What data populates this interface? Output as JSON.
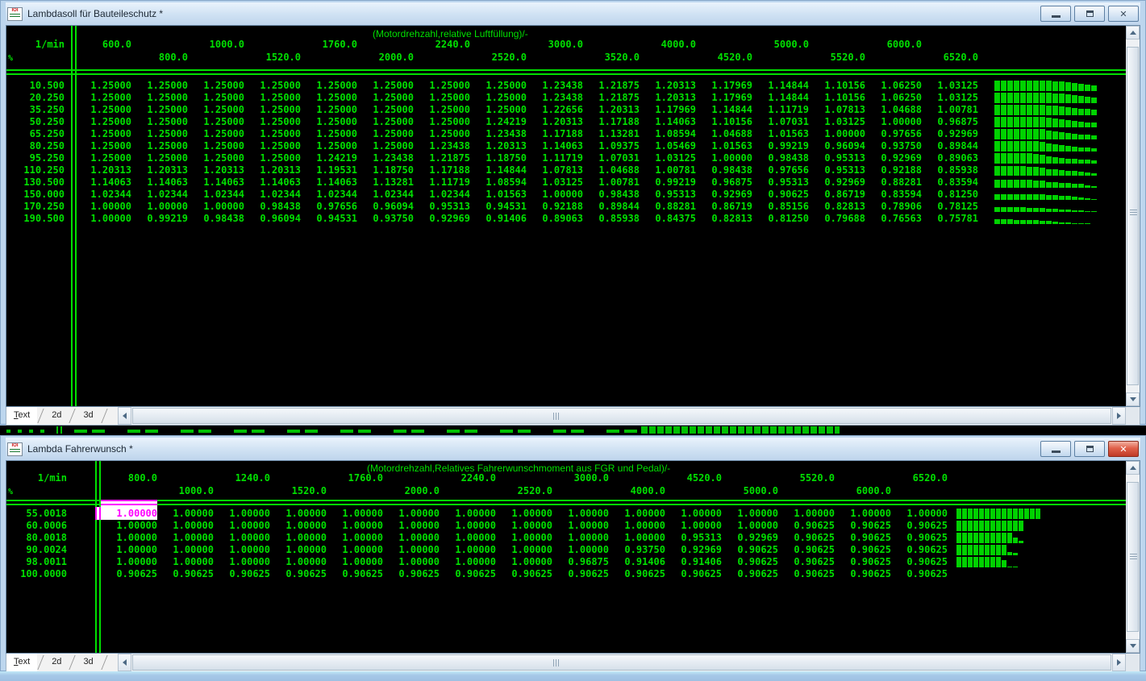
{
  "app": {
    "icon_text": "IOI"
  },
  "icons": {
    "close": "✕"
  },
  "colors": {
    "table_green": "#00e000",
    "bar_green": "#00d200",
    "selection_magenta": "#ff00ff",
    "selection_bg": "#ffffff",
    "table_bg": "#000000",
    "titlebar_blue": "#cfe1f3",
    "desktop_blue": "#9fc0e2"
  },
  "top_window": {
    "title": "Lambdasoll für Bauteileschutz *",
    "note": "(Motordrehzahl,relative Luftfüllung)/-",
    "x_unit": "1/min",
    "y_unit": "%",
    "tabs": [
      "Text",
      "2d",
      "3d"
    ],
    "active_tab": "Text",
    "columns": [
      "600.0",
      "800.0",
      "1000.0",
      "1520.0",
      "1760.0",
      "2000.0",
      "2240.0",
      "2520.0",
      "3000.0",
      "3520.0",
      "4000.0",
      "4520.0",
      "5000.0",
      "5520.0",
      "6000.0",
      "6520.0"
    ],
    "rows": [
      {
        "label": "10.500",
        "values": [
          "1.25000",
          "1.25000",
          "1.25000",
          "1.25000",
          "1.25000",
          "1.25000",
          "1.25000",
          "1.25000",
          "1.23438",
          "1.21875",
          "1.20313",
          "1.17969",
          "1.14844",
          "1.10156",
          "1.06250",
          "1.03125"
        ]
      },
      {
        "label": "20.250",
        "values": [
          "1.25000",
          "1.25000",
          "1.25000",
          "1.25000",
          "1.25000",
          "1.25000",
          "1.25000",
          "1.25000",
          "1.23438",
          "1.21875",
          "1.20313",
          "1.17969",
          "1.14844",
          "1.10156",
          "1.06250",
          "1.03125"
        ]
      },
      {
        "label": "35.250",
        "values": [
          "1.25000",
          "1.25000",
          "1.25000",
          "1.25000",
          "1.25000",
          "1.25000",
          "1.25000",
          "1.25000",
          "1.22656",
          "1.20313",
          "1.17969",
          "1.14844",
          "1.11719",
          "1.07813",
          "1.04688",
          "1.00781"
        ]
      },
      {
        "label": "50.250",
        "values": [
          "1.25000",
          "1.25000",
          "1.25000",
          "1.25000",
          "1.25000",
          "1.25000",
          "1.25000",
          "1.24219",
          "1.20313",
          "1.17188",
          "1.14063",
          "1.10156",
          "1.07031",
          "1.03125",
          "1.00000",
          "0.96875"
        ]
      },
      {
        "label": "65.250",
        "values": [
          "1.25000",
          "1.25000",
          "1.25000",
          "1.25000",
          "1.25000",
          "1.25000",
          "1.25000",
          "1.23438",
          "1.17188",
          "1.13281",
          "1.08594",
          "1.04688",
          "1.01563",
          "1.00000",
          "0.97656",
          "0.92969"
        ]
      },
      {
        "label": "80.250",
        "values": [
          "1.25000",
          "1.25000",
          "1.25000",
          "1.25000",
          "1.25000",
          "1.25000",
          "1.23438",
          "1.20313",
          "1.14063",
          "1.09375",
          "1.05469",
          "1.01563",
          "0.99219",
          "0.96094",
          "0.93750",
          "0.89844"
        ]
      },
      {
        "label": "95.250",
        "values": [
          "1.25000",
          "1.25000",
          "1.25000",
          "1.25000",
          "1.24219",
          "1.23438",
          "1.21875",
          "1.18750",
          "1.11719",
          "1.07031",
          "1.03125",
          "1.00000",
          "0.98438",
          "0.95313",
          "0.92969",
          "0.89063"
        ]
      },
      {
        "label": "110.250",
        "values": [
          "1.20313",
          "1.20313",
          "1.20313",
          "1.20313",
          "1.19531",
          "1.18750",
          "1.17188",
          "1.14844",
          "1.07813",
          "1.04688",
          "1.00781",
          "0.98438",
          "0.97656",
          "0.95313",
          "0.92188",
          "0.85938"
        ]
      },
      {
        "label": "130.500",
        "values": [
          "1.14063",
          "1.14063",
          "1.14063",
          "1.14063",
          "1.14063",
          "1.13281",
          "1.11719",
          "1.08594",
          "1.03125",
          "1.00781",
          "0.99219",
          "0.96875",
          "0.95313",
          "0.92969",
          "0.88281",
          "0.83594"
        ]
      },
      {
        "label": "150.000",
        "values": [
          "1.02344",
          "1.02344",
          "1.02344",
          "1.02344",
          "1.02344",
          "1.02344",
          "1.02344",
          "1.01563",
          "1.00000",
          "0.98438",
          "0.95313",
          "0.92969",
          "0.90625",
          "0.86719",
          "0.83594",
          "0.81250"
        ]
      },
      {
        "label": "170.250",
        "values": [
          "1.00000",
          "1.00000",
          "1.00000",
          "0.98438",
          "0.97656",
          "0.96094",
          "0.95313",
          "0.94531",
          "0.92188",
          "0.89844",
          "0.88281",
          "0.86719",
          "0.85156",
          "0.82813",
          "0.78906",
          "0.78125"
        ]
      },
      {
        "label": "190.500",
        "values": [
          "1.00000",
          "0.99219",
          "0.98438",
          "0.96094",
          "0.94531",
          "0.93750",
          "0.92969",
          "0.91406",
          "0.89063",
          "0.85938",
          "0.84375",
          "0.82813",
          "0.81250",
          "0.79688",
          "0.76563",
          "0.75781"
        ]
      }
    ]
  },
  "bottom_window": {
    "title": "Lambda Fahrerwunsch *",
    "note": "(Motordrehzahl,Relatives Fahrerwunschmoment aus FGR und Pedal)/-",
    "x_unit": "1/min",
    "y_unit": "%",
    "tabs": [
      "Text",
      "2d",
      "3d"
    ],
    "active_tab": "Text",
    "columns": [
      "800.0",
      "1000.0",
      "1240.0",
      "1520.0",
      "1760.0",
      "2000.0",
      "2240.0",
      "2520.0",
      "3000.0",
      "4000.0",
      "4520.0",
      "5000.0",
      "5520.0",
      "6000.0",
      "6520.0"
    ],
    "selection": {
      "row": 0,
      "col": 0,
      "value": "1.00000"
    },
    "rows": [
      {
        "label": "55.0018",
        "values": [
          "1.00000",
          "1.00000",
          "1.00000",
          "1.00000",
          "1.00000",
          "1.00000",
          "1.00000",
          "1.00000",
          "1.00000",
          "1.00000",
          "1.00000",
          "1.00000",
          "1.00000",
          "1.00000",
          "1.00000"
        ]
      },
      {
        "label": "60.0006",
        "values": [
          "1.00000",
          "1.00000",
          "1.00000",
          "1.00000",
          "1.00000",
          "1.00000",
          "1.00000",
          "1.00000",
          "1.00000",
          "1.00000",
          "1.00000",
          "1.00000",
          "0.90625",
          "0.90625",
          "0.90625"
        ]
      },
      {
        "label": "80.0018",
        "values": [
          "1.00000",
          "1.00000",
          "1.00000",
          "1.00000",
          "1.00000",
          "1.00000",
          "1.00000",
          "1.00000",
          "1.00000",
          "1.00000",
          "0.95313",
          "0.92969",
          "0.90625",
          "0.90625",
          "0.90625"
        ]
      },
      {
        "label": "90.0024",
        "values": [
          "1.00000",
          "1.00000",
          "1.00000",
          "1.00000",
          "1.00000",
          "1.00000",
          "1.00000",
          "1.00000",
          "1.00000",
          "0.93750",
          "0.92969",
          "0.90625",
          "0.90625",
          "0.90625",
          "0.90625"
        ]
      },
      {
        "label": "98.0011",
        "values": [
          "1.00000",
          "1.00000",
          "1.00000",
          "1.00000",
          "1.00000",
          "1.00000",
          "1.00000",
          "1.00000",
          "0.96875",
          "0.91406",
          "0.91406",
          "0.90625",
          "0.90625",
          "0.90625",
          "0.90625"
        ]
      },
      {
        "label": "100.0000",
        "values": [
          "0.90625",
          "0.90625",
          "0.90625",
          "0.90625",
          "0.90625",
          "0.90625",
          "0.90625",
          "0.90625",
          "0.90625",
          "0.90625",
          "0.90625",
          "0.90625",
          "0.90625",
          "0.90625",
          "0.90625"
        ]
      }
    ]
  }
}
